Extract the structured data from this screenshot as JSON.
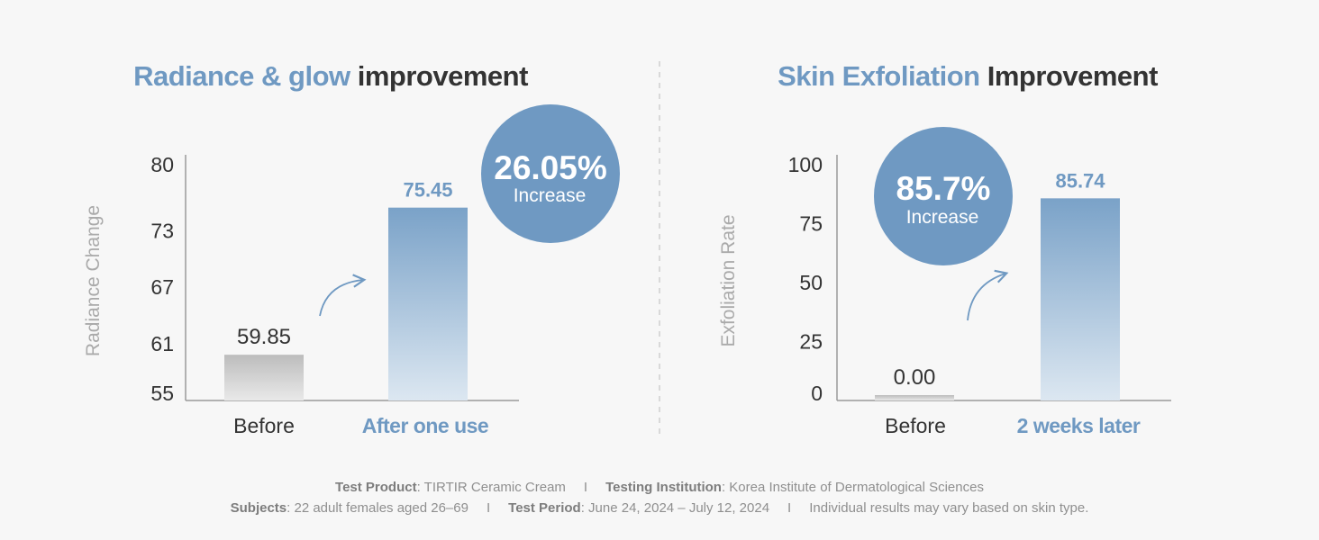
{
  "colors": {
    "accent": "#6f99c2",
    "title_dark": "#333333",
    "axis": "#9a9a9a",
    "bar_before": "#bdbdbd",
    "bar_after": "#7ea5c9",
    "text": "#333333",
    "muted": "#aaaaaa"
  },
  "chart_data": [
    {
      "type": "bar",
      "title_accent": "Radiance & glow",
      "title_rest": "improvement",
      "ylabel": "Radiance Change",
      "yticks": [
        55,
        61,
        67,
        73,
        80
      ],
      "ylim": [
        55,
        80
      ],
      "categories": [
        "Before",
        "After one use"
      ],
      "values": [
        59.85,
        75.45
      ],
      "value_labels": [
        "59.85",
        "75.45"
      ],
      "badge_value": "26.05%",
      "badge_label": "Increase"
    },
    {
      "type": "bar",
      "title_accent": "Skin Exfoliation",
      "title_rest": "Improvement",
      "ylabel": "Exfoliation Rate",
      "yticks": [
        0,
        25,
        50,
        75,
        100
      ],
      "ylim": [
        0,
        100
      ],
      "categories": [
        "Before",
        "2 weeks later"
      ],
      "values": [
        0.0,
        85.74
      ],
      "value_labels": [
        "0.00",
        "85.74"
      ],
      "badge_value": "85.7%",
      "badge_label": "Increase"
    }
  ],
  "footer": {
    "product_label": "Test Product",
    "product_value": ": TIRTIR Ceramic Cream",
    "institution_label": "Testing Institution",
    "institution_value": ": Korea Institute of Dermatological Sciences",
    "subjects_label": "Subjects",
    "subjects_value": ": 22 adult females aged 26–69",
    "period_label": "Test Period",
    "period_value": ": June 24, 2024 – July 12, 2024",
    "disclaimer": "Individual results may vary based on skin type.",
    "separator": "I"
  }
}
